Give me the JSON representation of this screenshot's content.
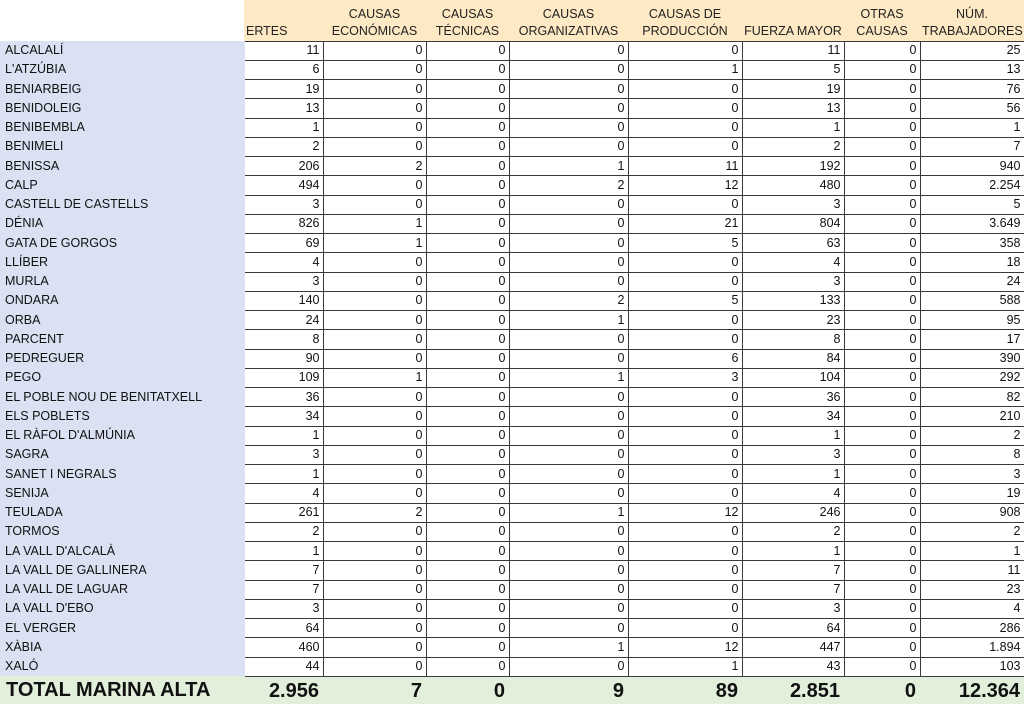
{
  "headers": [
    "",
    "ERTES",
    "CAUSAS ECONÓMICAS",
    "CAUSAS TÉCNICAS",
    "CAUSAS ORGANIZATIVAS",
    "CAUSAS DE PRODUCCIÓN",
    "FUERZA MAYOR",
    "OTRAS CAUSAS",
    "NÚM. TRABAJADORES"
  ],
  "rows": [
    [
      "ALCALALÍ",
      "11",
      "0",
      "0",
      "0",
      "0",
      "11",
      "0",
      "25"
    ],
    [
      "L'ATZÚBIA",
      "6",
      "0",
      "0",
      "0",
      "1",
      "5",
      "0",
      "13"
    ],
    [
      "BENIARBEIG",
      "19",
      "0",
      "0",
      "0",
      "0",
      "19",
      "0",
      "76"
    ],
    [
      "BENIDOLEIG",
      "13",
      "0",
      "0",
      "0",
      "0",
      "13",
      "0",
      "56"
    ],
    [
      "BENIBEMBLA",
      "1",
      "0",
      "0",
      "0",
      "0",
      "1",
      "0",
      "1"
    ],
    [
      "BENIMELI",
      "2",
      "0",
      "0",
      "0",
      "0",
      "2",
      "0",
      "7"
    ],
    [
      "BENISSA",
      "206",
      "2",
      "0",
      "1",
      "11",
      "192",
      "0",
      "940"
    ],
    [
      "CALP",
      "494",
      "0",
      "0",
      "2",
      "12",
      "480",
      "0",
      "2.254"
    ],
    [
      "CASTELL DE CASTELLS",
      "3",
      "0",
      "0",
      "0",
      "0",
      "3",
      "0",
      "5"
    ],
    [
      "DÉNIA",
      "826",
      "1",
      "0",
      "0",
      "21",
      "804",
      "0",
      "3.649"
    ],
    [
      "GATA DE GORGOS",
      "69",
      "1",
      "0",
      "0",
      "5",
      "63",
      "0",
      "358"
    ],
    [
      "LLÍBER",
      "4",
      "0",
      "0",
      "0",
      "0",
      "4",
      "0",
      "18"
    ],
    [
      "MURLA",
      "3",
      "0",
      "0",
      "0",
      "0",
      "3",
      "0",
      "24"
    ],
    [
      "ONDARA",
      "140",
      "0",
      "0",
      "2",
      "5",
      "133",
      "0",
      "588"
    ],
    [
      "ORBA",
      "24",
      "0",
      "0",
      "1",
      "0",
      "23",
      "0",
      "95"
    ],
    [
      "PARCENT",
      "8",
      "0",
      "0",
      "0",
      "0",
      "8",
      "0",
      "17"
    ],
    [
      "PEDREGUER",
      "90",
      "0",
      "0",
      "0",
      "6",
      "84",
      "0",
      "390"
    ],
    [
      "PEGO",
      "109",
      "1",
      "0",
      "1",
      "3",
      "104",
      "0",
      "292"
    ],
    [
      "EL POBLE NOU DE BENITATXELL",
      "36",
      "0",
      "0",
      "0",
      "0",
      "36",
      "0",
      "82"
    ],
    [
      "ELS POBLETS",
      "34",
      "0",
      "0",
      "0",
      "0",
      "34",
      "0",
      "210"
    ],
    [
      "EL RÀFOL D'ALMÚNIA",
      "1",
      "0",
      "0",
      "0",
      "0",
      "1",
      "0",
      "2"
    ],
    [
      "SAGRA",
      "3",
      "0",
      "0",
      "0",
      "0",
      "3",
      "0",
      "8"
    ],
    [
      "SANET I NEGRALS",
      "1",
      "0",
      "0",
      "0",
      "0",
      "1",
      "0",
      "3"
    ],
    [
      "SENIJA",
      "4",
      "0",
      "0",
      "0",
      "0",
      "4",
      "0",
      "19"
    ],
    [
      "TEULADA",
      "261",
      "2",
      "0",
      "1",
      "12",
      "246",
      "0",
      "908"
    ],
    [
      "TORMOS",
      "2",
      "0",
      "0",
      "0",
      "0",
      "2",
      "0",
      "2"
    ],
    [
      "LA VALL D'ALCALÀ",
      "1",
      "0",
      "0",
      "0",
      "0",
      "1",
      "0",
      "1"
    ],
    [
      "LA VALL DE GALLINERA",
      "7",
      "0",
      "0",
      "0",
      "0",
      "7",
      "0",
      "11"
    ],
    [
      "LA VALL DE LAGUAR",
      "7",
      "0",
      "0",
      "0",
      "0",
      "7",
      "0",
      "23"
    ],
    [
      "LA VALL D'EBO",
      "3",
      "0",
      "0",
      "0",
      "0",
      "3",
      "0",
      "4"
    ],
    [
      "EL VERGER",
      "64",
      "0",
      "0",
      "0",
      "0",
      "64",
      "0",
      "286"
    ],
    [
      "XÀBIA",
      "460",
      "0",
      "0",
      "1",
      "12",
      "447",
      "0",
      "1.894"
    ],
    [
      "XALÓ",
      "44",
      "0",
      "0",
      "0",
      "1",
      "43",
      "0",
      "103"
    ]
  ],
  "total": [
    "TOTAL MARINA ALTA",
    "2.956",
    "7",
    "0",
    "9",
    "89",
    "2.851",
    "0",
    "12.364"
  ],
  "colors": {
    "header_bg": "#fde9c4",
    "name_col_bg": "#d9e1f2",
    "total_bg": "#e2efda"
  }
}
